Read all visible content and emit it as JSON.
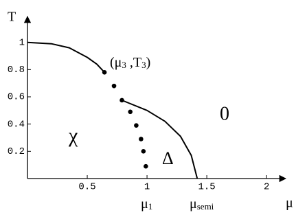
{
  "chart_data": {
    "type": "line",
    "x_label": "μ",
    "y_label": "T",
    "xlim": [
      0,
      2.16
    ],
    "ylim": [
      0,
      1.19
    ],
    "xticks": [
      {
        "value": 0.5,
        "label": "0.5"
      },
      1,
      {
        "value": 1.5,
        "label": "1.5"
      },
      2
    ],
    "yticks": [
      0.2,
      0.4,
      0.6,
      0.8,
      1
    ],
    "series": [
      {
        "style": "solid",
        "color": "#000000",
        "x": [
          0,
          0.2,
          0.35,
          0.5,
          0.58,
          0.644
        ],
        "values": [
          1,
          0.99,
          0.96,
          0.89,
          0.84,
          0.78
        ]
      },
      {
        "style": "solid",
        "color": "#000000",
        "x": [
          0.79,
          1,
          1.15,
          1.28,
          1.37,
          1.42
        ],
        "values": [
          0.575,
          0.5,
          0.42,
          0.31,
          0.17,
          0
        ]
      },
      {
        "style": "dots",
        "color": "#000000",
        "x": [
          0.644,
          0.724,
          0.79,
          0.86,
          0.91,
          0.95,
          0.97,
          0.99
        ],
        "values": [
          0.78,
          0.68,
          0.575,
          0.49,
          0.39,
          0.29,
          0.2,
          0.09
        ]
      }
    ],
    "point_label": {
      "open": "(",
      "base": "μ",
      "sub": "3",
      "sep": " ,",
      "base2": "T",
      "sub2": "3",
      "close": ")"
    },
    "regions": [
      "χ",
      "Δ",
      "0"
    ],
    "axis_marks": [
      {
        "base": "μ",
        "sub": "1"
      },
      {
        "base": "μ",
        "sub": "semi"
      }
    ]
  }
}
